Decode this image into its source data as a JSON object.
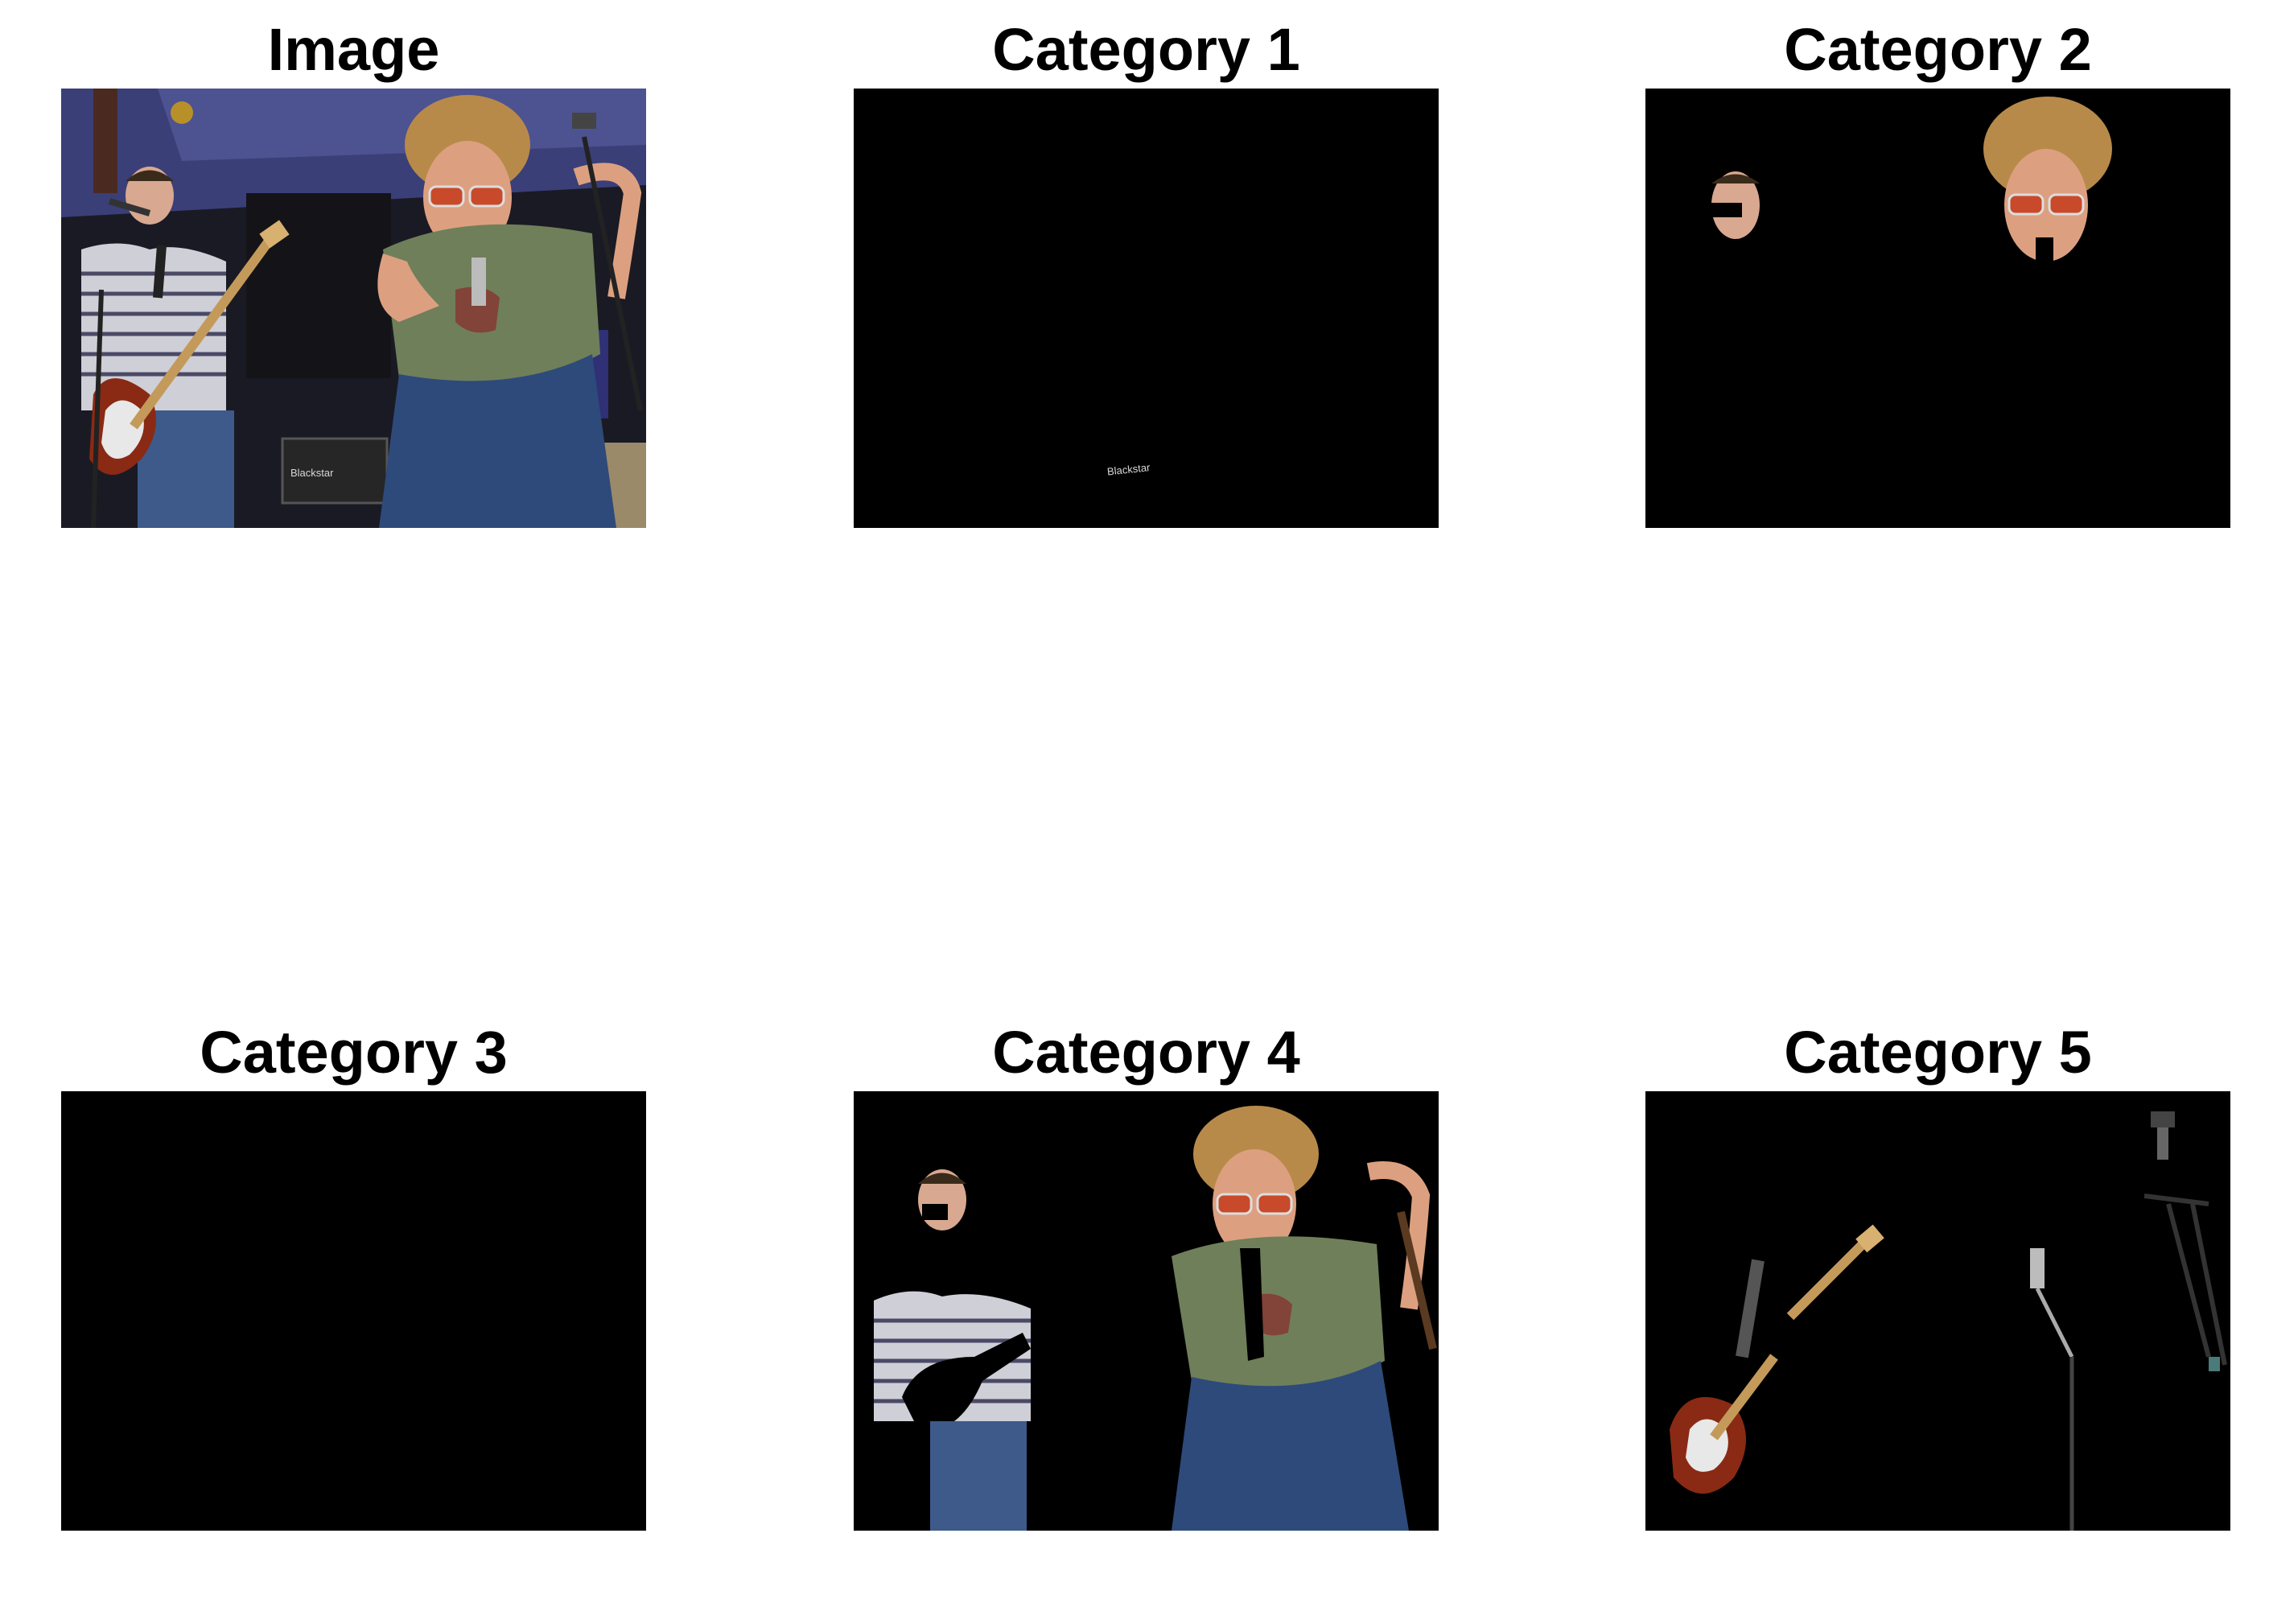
{
  "panels": [
    {
      "title": "Image"
    },
    {
      "title": "Category 1"
    },
    {
      "title": "Category 2"
    },
    {
      "title": "Category 3"
    },
    {
      "title": "Category 4"
    },
    {
      "title": "Category 5"
    }
  ],
  "amp_brand": "Blackstar",
  "colors": {
    "background": "#ffffff",
    "mask": "#000000"
  }
}
